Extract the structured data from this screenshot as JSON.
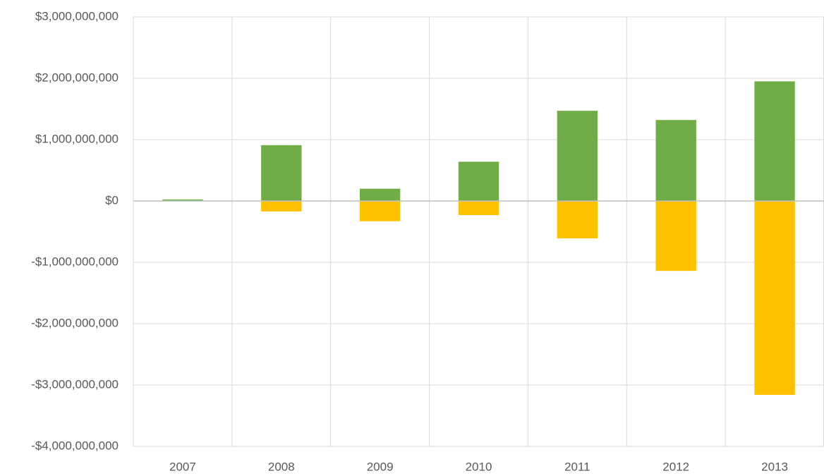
{
  "chart_data": {
    "type": "bar",
    "categories": [
      "2007",
      "2008",
      "2009",
      "2010",
      "2011",
      "2012",
      "2013"
    ],
    "series": [
      {
        "color": "#70ad47",
        "values": [
          25000000,
          910000000,
          200000000,
          640000000,
          1470000000,
          1320000000,
          1950000000
        ]
      },
      {
        "color": "#ffc000",
        "values": [
          0,
          -170000000,
          -330000000,
          -230000000,
          -610000000,
          -1140000000,
          -3160000000
        ]
      }
    ],
    "ylim": [
      -4000000000,
      3000000000
    ],
    "yticks": [
      {
        "value": -4000000000,
        "label": "-$4,000,000,000"
      },
      {
        "value": -3000000000,
        "label": "-$3,000,000,000"
      },
      {
        "value": -2000000000,
        "label": "-$2,000,000,000"
      },
      {
        "value": -1000000000,
        "label": "-$1,000,000,000"
      },
      {
        "value": 0,
        "label": "$0"
      },
      {
        "value": 1000000000,
        "label": "$1,000,000,000"
      },
      {
        "value": 2000000000,
        "label": "$2,000,000,000"
      },
      {
        "value": 3000000000,
        "label": "$3,000,000,000"
      }
    ],
    "grid": true
  }
}
